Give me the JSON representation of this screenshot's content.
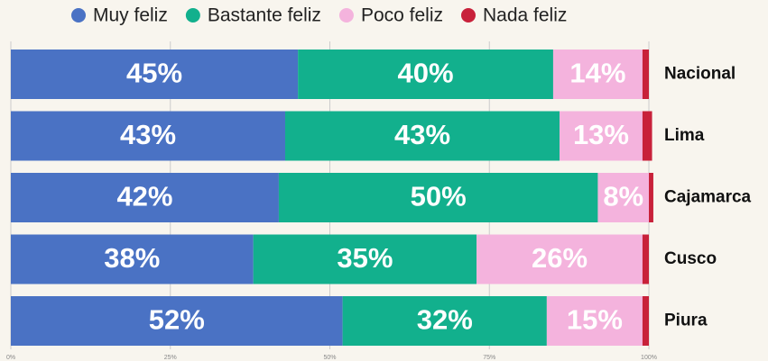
{
  "chart_data": {
    "type": "stacked-barh",
    "categories": [
      "Nacional",
      "Lima",
      "Cajamarca",
      "Cusco",
      "Piura"
    ],
    "series": [
      {
        "name": "Muy feliz",
        "color": "#4a72c4",
        "values": [
          45,
          43,
          42,
          38,
          52
        ],
        "value_labels": [
          "45%",
          "43%",
          "42%",
          "38%",
          "52%"
        ]
      },
      {
        "name": "Bastante feliz",
        "color": "#12b08d",
        "values": [
          40,
          43,
          50,
          35,
          32
        ],
        "value_labels": [
          "40%",
          "43%",
          "50%",
          "35%",
          "32%"
        ]
      },
      {
        "name": "Poco feliz",
        "color": "#f4b3dd",
        "values": [
          14,
          13,
          8,
          26,
          15
        ],
        "value_labels": [
          "14%",
          "13%",
          "8%",
          "26%",
          "15%"
        ]
      },
      {
        "name": "Nada feliz",
        "color": "#c8213a",
        "values": [
          1,
          1.5,
          0.7,
          1,
          1
        ]
      }
    ],
    "xlim": [
      0,
      100
    ],
    "xticks": [
      {
        "value": 0,
        "label": "0%"
      },
      {
        "value": 25,
        "label": "25%"
      },
      {
        "value": 50,
        "label": "50%"
      },
      {
        "value": 75,
        "label": "75%"
      },
      {
        "value": 100,
        "label": "100%"
      }
    ],
    "grid": true,
    "legend": "top"
  }
}
